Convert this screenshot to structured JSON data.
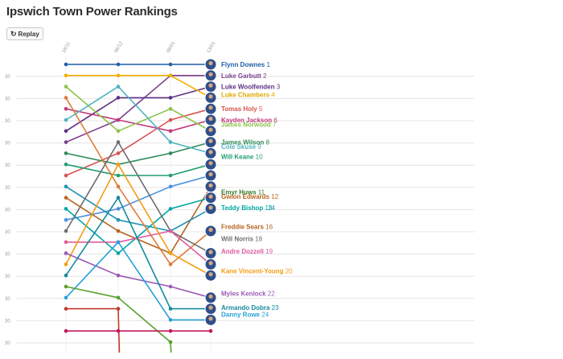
{
  "page": {
    "title": "Ipswich Town Power Rankings",
    "replay_label": "Replay",
    "replay_icon": "replay-icon"
  },
  "chart_data": {
    "type": "line",
    "subtype": "bump",
    "title": "Ipswich Town Power Rankings",
    "x": [
      "18/11",
      "06/12",
      "08/01",
      "13/01"
    ],
    "y_tick_label": "30",
    "y_reversed": true,
    "ylim": [
      1,
      25
    ],
    "grid": true,
    "series": [
      {
        "name": "Flynn Downes",
        "final": 1,
        "color": "#1f5fa6",
        "ranks": [
          1,
          1,
          1,
          1
        ]
      },
      {
        "name": "Luke Garbutt",
        "final": 2,
        "color": "#7b3f8c",
        "ranks": [
          8,
          6,
          2,
          2
        ]
      },
      {
        "name": "Luke Woolfenden",
        "final": 3,
        "color": "#5e2f86",
        "ranks": [
          7,
          4,
          4,
          3
        ]
      },
      {
        "name": "Luke Chambers",
        "final": 4,
        "color": "#f0b000",
        "ranks": [
          2,
          2,
          2,
          4
        ]
      },
      {
        "name": "Tomas Holy",
        "final": 5,
        "color": "#d9534f",
        "ranks": [
          11,
          9,
          6,
          5
        ]
      },
      {
        "name": "Kayden Jackson",
        "final": 6,
        "color": "#c0397a",
        "ranks": [
          5,
          6,
          7,
          6
        ]
      },
      {
        "name": "James Norwood",
        "final": 7,
        "color": "#8bc34a",
        "ranks": [
          3,
          7,
          5,
          7
        ]
      },
      {
        "name": "James Wilson",
        "final": 8,
        "color": "#2e8b57",
        "ranks": [
          9,
          10,
          9,
          8
        ]
      },
      {
        "name": "Cole Skuse",
        "final": 9,
        "color": "#4fb3bf",
        "ranks": [
          6,
          3,
          8,
          9
        ]
      },
      {
        "name": "Will Keane",
        "final": 10,
        "color": "#1f9e6e",
        "ranks": [
          10,
          11,
          11,
          10
        ]
      },
      {
        "name": "Emyr Huws",
        "final": 11,
        "color": "#4a90e2",
        "ranks": [
          15,
          14,
          12,
          11
        ]
      },
      {
        "name": "Gwion Edwards",
        "final": 12,
        "color": "#b5651d",
        "ranks": [
          13,
          16,
          18,
          12
        ]
      },
      {
        "name": "Teddy Bishop",
        "final": 13,
        "color": "#00a6a6",
        "ranks": [
          14,
          18,
          14,
          13
        ]
      },
      {
        "name": "Teddy Bishop",
        "final": 14,
        "color": "#1b93b3",
        "ranks": [
          12,
          15,
          16,
          14
        ]
      },
      {
        "name": "Freddie Sears",
        "final": 16,
        "color": "#e07b39",
        "ranks": [
          4,
          12,
          19,
          16
        ]
      },
      {
        "name": "Will Norris",
        "final": 18,
        "color": "#6d6d6d",
        "ranks": [
          16,
          8,
          16,
          18
        ]
      },
      {
        "name": "Andre Dozzell",
        "final": 19,
        "color": "#e05a9e",
        "ranks": [
          17,
          17,
          16,
          19
        ]
      },
      {
        "name": "Kane Vincent-Young",
        "final": 20,
        "color": "#f39c12",
        "ranks": [
          19,
          10,
          18,
          20
        ]
      },
      {
        "name": "Myles Kenlock",
        "final": 22,
        "color": "#9b59b6",
        "ranks": [
          18,
          20,
          21,
          22
        ]
      },
      {
        "name": "Armando Dobra",
        "final": 23,
        "color": "#138a9e",
        "ranks": [
          20,
          13,
          23,
          23
        ]
      },
      {
        "name": "Danny Rowe",
        "final": 24,
        "color": "#26a0da",
        "ranks": [
          22,
          17,
          24,
          24
        ]
      },
      {
        "name": "",
        "final": null,
        "color": "#5aa02c",
        "ranks": [
          21,
          22,
          26,
          null
        ]
      },
      {
        "name": "",
        "final": null,
        "color": "#c0392b",
        "ranks": [
          23,
          23,
          null,
          null
        ]
      },
      {
        "name": "",
        "final": null,
        "color": "#c2185b",
        "ranks": [
          25,
          25,
          25,
          25
        ]
      }
    ],
    "end_labels": [
      {
        "text": "Flynn Downes",
        "num": "1",
        "color": "#1f5fa6",
        "rank": 1
      },
      {
        "text": "Luke Garbutt",
        "num": "2",
        "color": "#7b3f8c",
        "rank": 2
      },
      {
        "text": "Luke Woolfenden",
        "num": "3",
        "color": "#5e2f86",
        "rank": 3
      },
      {
        "text": "Luke Chambers",
        "num": "4",
        "color": "#e0a800",
        "rank": 3.7
      },
      {
        "text": "Tomas Holy",
        "num": "5",
        "color": "#d9534f",
        "rank": 5
      },
      {
        "text": "Kayden Jackson",
        "num": "6",
        "color": "#c0397a",
        "rank": 6
      },
      {
        "text": "James Norwood",
        "num": "7",
        "color": "#8bc34a",
        "rank": 6.4
      },
      {
        "text": "James Wilson",
        "num": "8",
        "color": "#2e8b57",
        "rank": 8
      },
      {
        "text": "Cole Skuse",
        "num": "9",
        "color": "#4fb3bf",
        "rank": 8.4
      },
      {
        "text": "Will Keane",
        "num": "10",
        "color": "#1f9e6e",
        "rank": 9.3
      },
      {
        "text": "Emyr Huws",
        "num": "11",
        "color": "#3a7d2c",
        "rank": 12.5
      },
      {
        "text": "Gwion Edwards",
        "num": "12",
        "color": "#b5651d",
        "rank": 12.9
      },
      {
        "text": "Teddy Bishop",
        "num": "13",
        "color": "#00a6a6",
        "rank": 13.9
      },
      {
        "text": "",
        "num": "14",
        "color": "#1b93b3",
        "rank": 13.9,
        "offset": 58
      },
      {
        "text": "Freddie Sears",
        "num": "16",
        "color": "#b5651d",
        "rank": 15.6
      },
      {
        "text": "Will Norris",
        "num": "18",
        "color": "#6d6d6d",
        "rank": 16.7
      },
      {
        "text": "Andre Dozzell",
        "num": "19",
        "color": "#e05a9e",
        "rank": 17.8
      },
      {
        "text": "Kane Vincent-Young",
        "num": "20",
        "color": "#f39c12",
        "rank": 19.6
      },
      {
        "text": "Myles Kenlock",
        "num": "22",
        "color": "#9b59b6",
        "rank": 21.6
      },
      {
        "text": "Armando Dobra",
        "num": "23",
        "color": "#138a9e",
        "rank": 22.9
      },
      {
        "text": "Danny Rowe",
        "num": "24",
        "color": "#26a0da",
        "rank": 23.5
      }
    ]
  }
}
